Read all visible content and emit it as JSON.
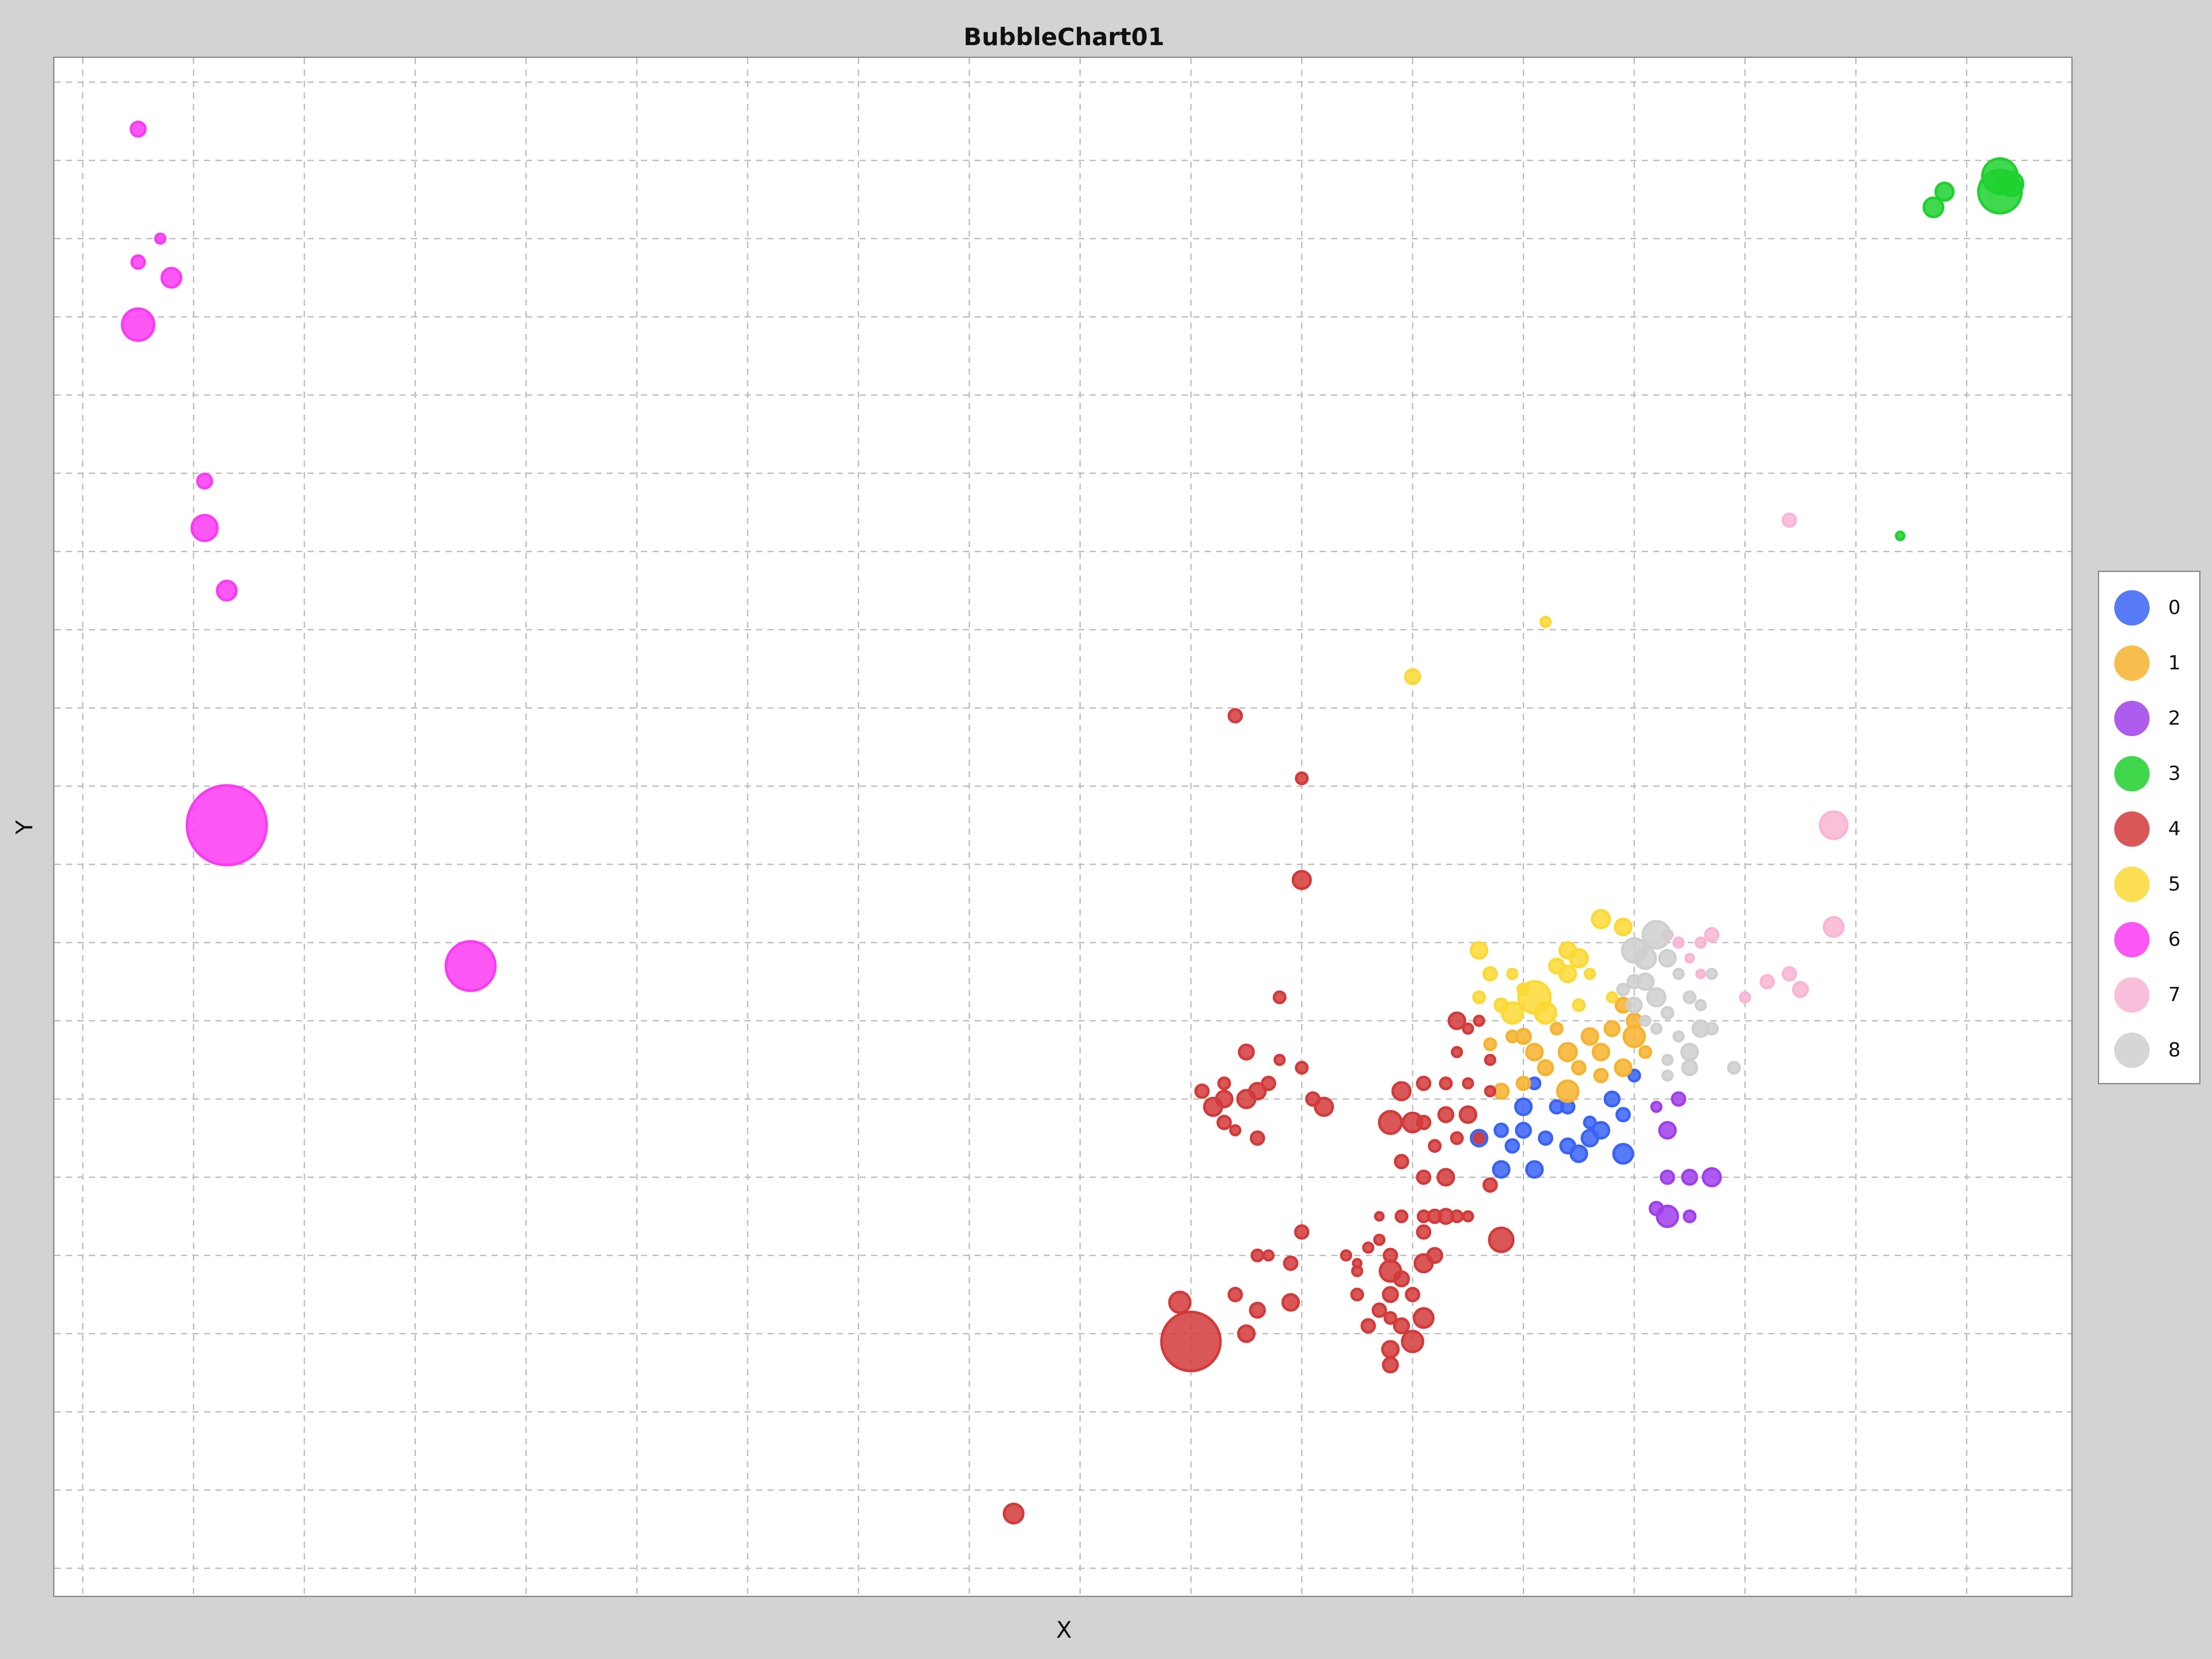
{
  "chart_data": {
    "type": "scatter",
    "title": "BubbleChart01",
    "xlabel": "X",
    "ylabel": "Y",
    "xlim": [
      0,
      18.2
    ],
    "ylim": [
      0,
      19.7
    ],
    "grid": true,
    "legend_placement": "right",
    "series": [
      {
        "name": "0",
        "color": "#3a63f5",
        "points": [
          [
            13.0,
            5.9,
            1.0
          ],
          [
            13.3,
            5.9,
            0.8
          ],
          [
            13.5,
            5.3,
            1.0
          ],
          [
            13.0,
            5.6,
            0.9
          ],
          [
            12.8,
            5.6,
            0.8
          ],
          [
            13.6,
            5.5,
            1.0
          ],
          [
            13.7,
            5.6,
            1.0
          ],
          [
            13.9,
            5.3,
            1.2
          ],
          [
            13.8,
            6.0,
            0.9
          ],
          [
            13.1,
            5.1,
            1.0
          ],
          [
            12.6,
            5.5,
            1.0
          ],
          [
            12.8,
            5.1,
            1.0
          ],
          [
            13.2,
            5.5,
            0.8
          ],
          [
            13.4,
            5.9,
            0.8
          ],
          [
            13.9,
            5.8,
            0.8
          ],
          [
            14.0,
            6.3,
            0.7
          ],
          [
            12.9,
            5.4,
            0.8
          ],
          [
            13.1,
            6.2,
            0.7
          ],
          [
            13.4,
            5.4,
            0.9
          ],
          [
            13.6,
            5.7,
            0.7
          ]
        ]
      },
      {
        "name": "1",
        "color": "#f6b32f",
        "points": [
          [
            13.1,
            6.6,
            1.0
          ],
          [
            13.4,
            6.6,
            1.1
          ],
          [
            13.0,
            6.8,
            0.9
          ],
          [
            13.7,
            6.6,
            1.0
          ],
          [
            13.9,
            6.4,
            1.0
          ],
          [
            13.4,
            6.1,
            1.3
          ],
          [
            13.2,
            6.4,
            0.9
          ],
          [
            13.8,
            6.9,
            0.9
          ],
          [
            13.6,
            6.8,
            1.0
          ],
          [
            12.8,
            6.1,
            0.9
          ],
          [
            13.0,
            6.2,
            0.8
          ],
          [
            14.0,
            7.0,
            0.9
          ],
          [
            13.5,
            6.4,
            0.8
          ],
          [
            12.9,
            6.8,
            0.7
          ],
          [
            14.0,
            6.8,
            1.3
          ],
          [
            14.1,
            6.6,
            0.7
          ],
          [
            13.7,
            6.3,
            0.8
          ],
          [
            12.7,
            6.7,
            0.7
          ],
          [
            13.3,
            6.9,
            0.7
          ],
          [
            13.9,
            7.2,
            0.9
          ]
        ]
      },
      {
        "name": "2",
        "color": "#a040ec",
        "points": [
          [
            14.3,
            5.6,
            1.0
          ],
          [
            14.4,
            6.0,
            0.8
          ],
          [
            14.7,
            5.0,
            1.1
          ],
          [
            14.5,
            5.0,
            0.9
          ],
          [
            14.3,
            5.0,
            0.8
          ],
          [
            14.2,
            4.6,
            0.8
          ],
          [
            14.3,
            4.5,
            1.3
          ],
          [
            14.5,
            4.5,
            0.7
          ],
          [
            14.2,
            5.9,
            0.6
          ]
        ]
      },
      {
        "name": "3",
        "color": "#1fd12f",
        "points": [
          [
            17.3,
            17.8,
            2.2
          ],
          [
            17.3,
            17.6,
            2.7
          ],
          [
            17.4,
            17.7,
            1.5
          ],
          [
            16.8,
            17.6,
            1.1
          ],
          [
            16.7,
            17.4,
            1.2
          ],
          [
            16.4,
            13.2,
            0.5
          ]
        ]
      },
      {
        "name": "4",
        "color": "#d33a3a",
        "points": [
          [
            10.0,
            2.9,
            3.7
          ],
          [
            9.9,
            3.4,
            1.3
          ],
          [
            10.5,
            3.0,
            1.0
          ],
          [
            10.6,
            3.3,
            0.9
          ],
          [
            10.9,
            3.4,
            1.0
          ],
          [
            10.4,
            3.5,
            0.8
          ],
          [
            10.9,
            3.9,
            0.8
          ],
          [
            10.6,
            4.0,
            0.7
          ],
          [
            10.7,
            4.0,
            0.6
          ],
          [
            11.0,
            4.3,
            0.8
          ],
          [
            11.8,
            3.8,
            1.3
          ],
          [
            11.9,
            3.7,
            0.9
          ],
          [
            12.1,
            3.9,
            1.1
          ],
          [
            11.8,
            3.5,
            0.9
          ],
          [
            12.0,
            3.5,
            0.8
          ],
          [
            12.1,
            3.2,
            1.2
          ],
          [
            11.9,
            3.1,
            0.9
          ],
          [
            12.0,
            2.9,
            1.3
          ],
          [
            11.8,
            2.8,
            1.0
          ],
          [
            11.6,
            3.1,
            0.8
          ],
          [
            11.7,
            3.3,
            0.8
          ],
          [
            11.8,
            3.2,
            0.7
          ],
          [
            11.5,
            3.5,
            0.7
          ],
          [
            11.5,
            3.8,
            0.6
          ],
          [
            11.6,
            4.1,
            0.6
          ],
          [
            11.7,
            4.2,
            0.6
          ],
          [
            11.8,
            4.0,
            0.8
          ],
          [
            12.2,
            4.0,
            0.9
          ],
          [
            12.1,
            4.3,
            0.8
          ],
          [
            11.9,
            4.5,
            0.7
          ],
          [
            11.7,
            4.5,
            0.5
          ],
          [
            11.4,
            4.0,
            0.6
          ],
          [
            11.5,
            3.9,
            0.5
          ],
          [
            11.8,
            2.6,
            0.9
          ],
          [
            12.2,
            4.5,
            0.8
          ],
          [
            12.3,
            4.5,
            0.9
          ],
          [
            12.4,
            4.5,
            0.7
          ],
          [
            12.5,
            4.5,
            0.6
          ],
          [
            12.1,
            4.5,
            0.7
          ],
          [
            12.8,
            4.2,
            1.5
          ],
          [
            12.7,
            4.9,
            0.8
          ],
          [
            12.3,
            5.0,
            1.0
          ],
          [
            12.1,
            5.0,
            0.8
          ],
          [
            11.9,
            5.2,
            0.8
          ],
          [
            12.2,
            5.4,
            0.7
          ],
          [
            12.4,
            5.5,
            0.7
          ],
          [
            12.6,
            5.5,
            0.6
          ],
          [
            12.5,
            5.8,
            1.0
          ],
          [
            12.3,
            5.8,
            0.9
          ],
          [
            12.1,
            5.7,
            0.8
          ],
          [
            11.8,
            5.7,
            1.4
          ],
          [
            12.0,
            5.7,
            1.2
          ],
          [
            11.9,
            6.1,
            1.1
          ],
          [
            12.1,
            6.2,
            0.8
          ],
          [
            12.3,
            6.2,
            0.7
          ],
          [
            12.5,
            6.2,
            0.6
          ],
          [
            12.7,
            6.5,
            0.6
          ],
          [
            12.7,
            6.1,
            0.6
          ],
          [
            12.4,
            6.6,
            0.6
          ],
          [
            12.5,
            6.9,
            0.6
          ],
          [
            12.4,
            7.0,
            1.0
          ],
          [
            12.6,
            7.0,
            0.6
          ],
          [
            10.1,
            6.1,
            0.8
          ],
          [
            10.2,
            5.9,
            1.1
          ],
          [
            10.3,
            6.0,
            1.0
          ],
          [
            10.5,
            6.0,
            1.1
          ],
          [
            10.6,
            6.1,
            1.0
          ],
          [
            10.7,
            6.2,
            0.8
          ],
          [
            10.5,
            6.6,
            0.9
          ],
          [
            10.8,
            6.5,
            0.6
          ],
          [
            11.0,
            6.4,
            0.7
          ],
          [
            11.1,
            6.0,
            0.8
          ],
          [
            11.2,
            5.9,
            1.1
          ],
          [
            10.3,
            5.7,
            0.8
          ],
          [
            10.4,
            5.6,
            0.6
          ],
          [
            10.6,
            5.5,
            0.8
          ],
          [
            10.3,
            6.2,
            0.7
          ],
          [
            10.8,
            7.3,
            0.7
          ],
          [
            11.0,
            8.8,
            1.1
          ],
          [
            11.0,
            10.1,
            0.7
          ],
          [
            10.4,
            10.9,
            0.8
          ],
          [
            8.4,
            0.7,
            1.2
          ]
        ]
      },
      {
        "name": "5",
        "color": "#fcd934",
        "points": [
          [
            12.0,
            11.4,
            0.9
          ],
          [
            13.2,
            12.1,
            0.6
          ],
          [
            12.6,
            7.9,
            1.0
          ],
          [
            12.7,
            7.6,
            0.8
          ],
          [
            12.6,
            7.3,
            0.7
          ],
          [
            12.9,
            7.1,
            1.3
          ],
          [
            13.1,
            7.3,
            2.0
          ],
          [
            13.2,
            7.1,
            1.3
          ],
          [
            13.3,
            7.7,
            0.9
          ],
          [
            13.4,
            7.6,
            1.0
          ],
          [
            13.5,
            7.8,
            1.1
          ],
          [
            13.4,
            7.9,
            1.0
          ],
          [
            13.6,
            7.6,
            0.6
          ],
          [
            13.7,
            8.3,
            1.1
          ],
          [
            13.9,
            8.2,
            1.0
          ],
          [
            12.9,
            7.6,
            0.6
          ],
          [
            13.0,
            7.4,
            0.7
          ],
          [
            12.8,
            7.2,
            0.8
          ],
          [
            13.5,
            7.2,
            0.7
          ],
          [
            13.8,
            7.3,
            0.6
          ]
        ]
      },
      {
        "name": "6",
        "color": "#fb3af3",
        "points": [
          [
            0.5,
            18.4,
            0.9
          ],
          [
            0.7,
            17.0,
            0.6
          ],
          [
            0.5,
            16.7,
            0.8
          ],
          [
            0.8,
            16.5,
            1.2
          ],
          [
            0.5,
            15.9,
            2.0
          ],
          [
            1.1,
            13.9,
            0.9
          ],
          [
            1.1,
            13.3,
            1.6
          ],
          [
            1.3,
            12.5,
            1.2
          ],
          [
            1.3,
            9.5,
            5.0
          ],
          [
            3.5,
            7.7,
            3.1
          ]
        ]
      },
      {
        "name": "7",
        "color": "#f9b5d4",
        "points": [
          [
            15.4,
            13.4,
            0.8
          ],
          [
            15.8,
            9.5,
            1.7
          ],
          [
            15.8,
            8.2,
            1.2
          ],
          [
            15.5,
            7.4,
            0.9
          ],
          [
            15.4,
            7.6,
            0.8
          ],
          [
            15.2,
            7.5,
            0.8
          ],
          [
            15.0,
            7.3,
            0.6
          ],
          [
            14.7,
            8.1,
            0.8
          ],
          [
            14.6,
            8.0,
            0.6
          ],
          [
            14.5,
            7.8,
            0.5
          ],
          [
            14.4,
            8.0,
            0.6
          ],
          [
            14.3,
            8.1,
            0.6
          ],
          [
            14.6,
            7.6,
            0.5
          ]
        ]
      },
      {
        "name": "8",
        "color": "#cfcfcf",
        "points": [
          [
            14.0,
            7.9,
            1.5
          ],
          [
            14.1,
            7.8,
            1.3
          ],
          [
            14.2,
            8.1,
            1.7
          ],
          [
            14.3,
            7.8,
            1.0
          ],
          [
            14.1,
            7.5,
            1.0
          ],
          [
            14.2,
            7.3,
            1.1
          ],
          [
            14.0,
            7.2,
            0.9
          ],
          [
            14.3,
            7.1,
            0.7
          ],
          [
            14.5,
            7.3,
            0.7
          ],
          [
            14.6,
            7.2,
            0.6
          ],
          [
            14.7,
            6.9,
            0.7
          ],
          [
            14.4,
            6.8,
            0.6
          ],
          [
            14.5,
            6.6,
            1.0
          ],
          [
            14.3,
            6.5,
            0.6
          ],
          [
            14.6,
            6.9,
            1.0
          ],
          [
            14.0,
            7.5,
            0.8
          ],
          [
            14.4,
            7.6,
            0.6
          ],
          [
            14.9,
            6.4,
            0.7
          ],
          [
            14.5,
            6.4,
            0.9
          ],
          [
            14.2,
            6.9,
            0.6
          ],
          [
            14.1,
            7.0,
            0.6
          ],
          [
            13.9,
            7.4,
            0.7
          ],
          [
            14.3,
            6.3,
            0.6
          ],
          [
            14.7,
            7.6,
            0.6
          ]
        ]
      }
    ]
  },
  "legend": {
    "items": [
      {
        "label": "0",
        "color": "#3a63f5"
      },
      {
        "label": "1",
        "color": "#f6b32f"
      },
      {
        "label": "2",
        "color": "#a040ec"
      },
      {
        "label": "3",
        "color": "#1fd12f"
      },
      {
        "label": "4",
        "color": "#d33a3a"
      },
      {
        "label": "5",
        "color": "#fcd934"
      },
      {
        "label": "6",
        "color": "#fb3af3"
      },
      {
        "label": "7",
        "color": "#f9b5d4"
      },
      {
        "label": "8",
        "color": "#cfcfcf"
      }
    ]
  }
}
